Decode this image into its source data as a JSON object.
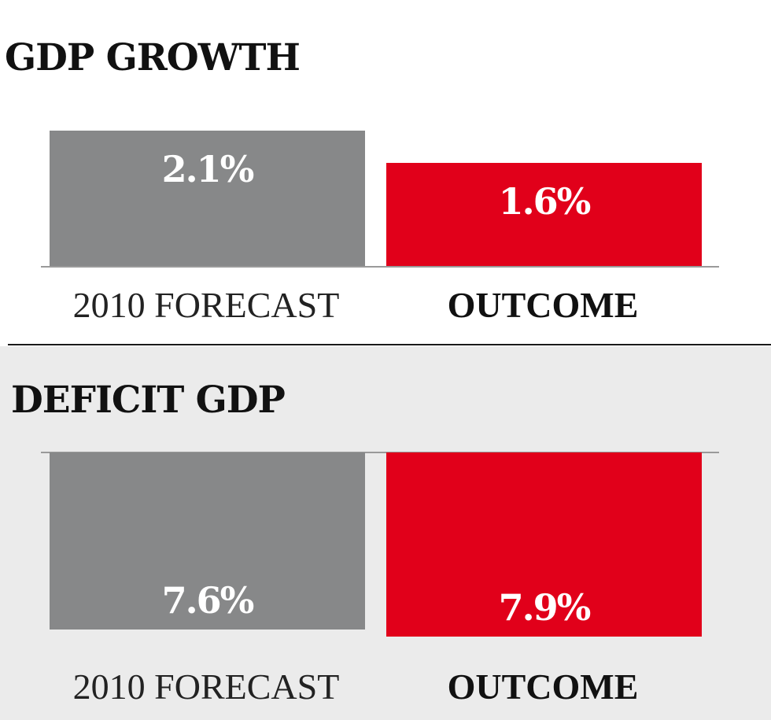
{
  "colors": {
    "forecast": "#878889",
    "outcome": "#e1001a",
    "text_on_bar": "#ffffff",
    "top_background": "#ffffff",
    "bottom_background": "#ebebeb"
  },
  "chart_data": [
    {
      "type": "bar",
      "title": "GDP GROWTH",
      "categories": [
        "2010 FORECAST",
        "OUTCOME"
      ],
      "values": [
        2.1,
        1.6
      ],
      "value_labels": [
        "2.1%",
        "1.6%"
      ],
      "orientation": "upward",
      "grid": false
    },
    {
      "type": "bar",
      "title": "DEFICIT GDP",
      "categories": [
        "2010 FORECAST",
        "OUTCOME"
      ],
      "values": [
        7.6,
        7.9
      ],
      "value_labels": [
        "7.6%",
        "7.9%"
      ],
      "orientation": "downward",
      "grid": false
    }
  ]
}
